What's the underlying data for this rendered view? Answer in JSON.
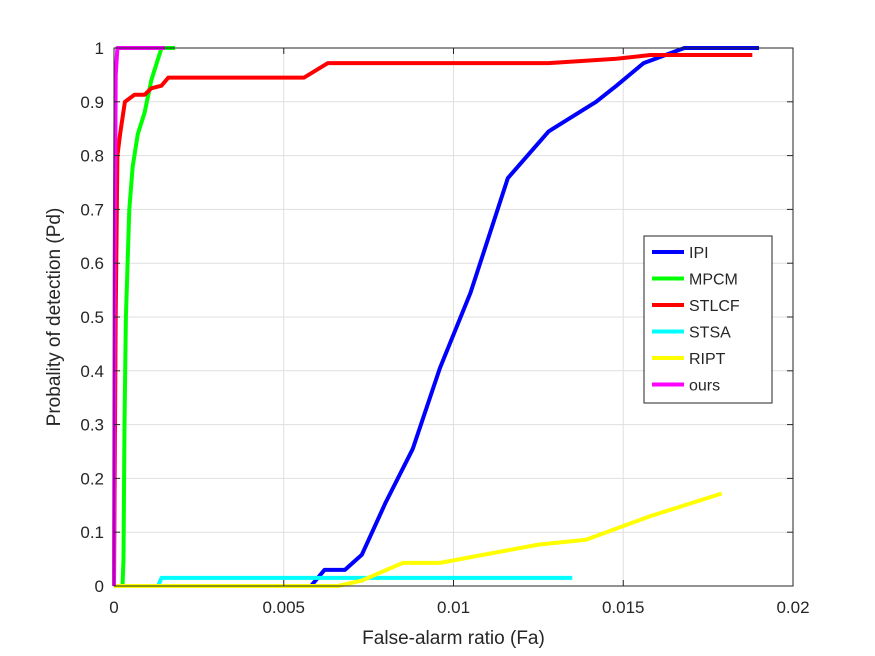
{
  "chart_data": {
    "type": "line",
    "xlabel": "False-alarm ratio (Fa)",
    "ylabel": "Probality of detection (Pd)",
    "xlim": [
      0,
      0.02
    ],
    "ylim": [
      0,
      1
    ],
    "xticks": [
      0,
      0.005,
      0.01,
      0.015,
      0.02
    ],
    "xtick_labels": [
      "0",
      "0.005",
      "0.01",
      "0.015",
      "0.02"
    ],
    "yticks": [
      0,
      0.1,
      0.2,
      0.3,
      0.4,
      0.5,
      0.6,
      0.7,
      0.8,
      0.9,
      1
    ],
    "ytick_labels": [
      "0",
      "0.1",
      "0.2",
      "0.3",
      "0.4",
      "0.5",
      "0.6",
      "0.7",
      "0.8",
      "0.9",
      "1"
    ],
    "grid": true,
    "legend_position": "right",
    "series": [
      {
        "name": "IPI",
        "color": "#0000ff",
        "x": [
          0,
          0.0058,
          0.0062,
          0.0068,
          0.0073,
          0.008,
          0.0088,
          0.0096,
          0.0105,
          0.0116,
          0.0128,
          0.0142,
          0.0148,
          0.0156,
          0.0168,
          0.019
        ],
        "y": [
          0,
          0,
          0.03,
          0.03,
          0.058,
          0.155,
          0.255,
          0.405,
          0.545,
          0.758,
          0.845,
          0.9,
          0.93,
          0.972,
          1.0,
          1.0
        ]
      },
      {
        "name": "MPCM",
        "color": "#00ff00",
        "x": [
          0,
          0.00025,
          0.00028,
          0.00031,
          0.00035,
          0.00045,
          0.00055,
          0.0007,
          0.0009,
          0.0011,
          0.00125,
          0.0014,
          0.0016,
          0.0018
        ],
        "y": [
          0,
          0,
          0.05,
          0.3,
          0.5,
          0.7,
          0.78,
          0.84,
          0.88,
          0.94,
          0.97,
          1.0,
          1.0,
          1.0
        ]
      },
      {
        "name": "STLCF",
        "color": "#ff0000",
        "x": [
          0,
          5e-05,
          0.0001,
          0.00018,
          0.00025,
          0.00032,
          0.0006,
          0.0009,
          0.0011,
          0.0014,
          0.0016,
          0.0056,
          0.0063,
          0.0128,
          0.0148,
          0.0158,
          0.0188
        ],
        "y": [
          0,
          0.5,
          0.8,
          0.84,
          0.87,
          0.9,
          0.913,
          0.913,
          0.925,
          0.93,
          0.945,
          0.945,
          0.972,
          0.972,
          0.98,
          0.987,
          0.987
        ]
      },
      {
        "name": "STSA",
        "color": "#00ffff",
        "x": [
          0,
          0.0013,
          0.0014,
          0.0135
        ],
        "y": [
          0,
          0,
          0.015,
          0.015
        ]
      },
      {
        "name": "RIPT",
        "color": "#ffff00",
        "x": [
          0,
          0.0066,
          0.0073,
          0.0085,
          0.0096,
          0.0125,
          0.0139,
          0.0158,
          0.0179
        ],
        "y": [
          0,
          0,
          0.01,
          0.043,
          0.043,
          0.077,
          0.086,
          0.13,
          0.172
        ]
      },
      {
        "name": "ours",
        "color": "#ff00ff",
        "x": [
          0,
          2e-05,
          5e-05,
          0.0001,
          0.0015
        ],
        "y": [
          0,
          0.6,
          0.95,
          1.0,
          1.0
        ]
      }
    ]
  }
}
